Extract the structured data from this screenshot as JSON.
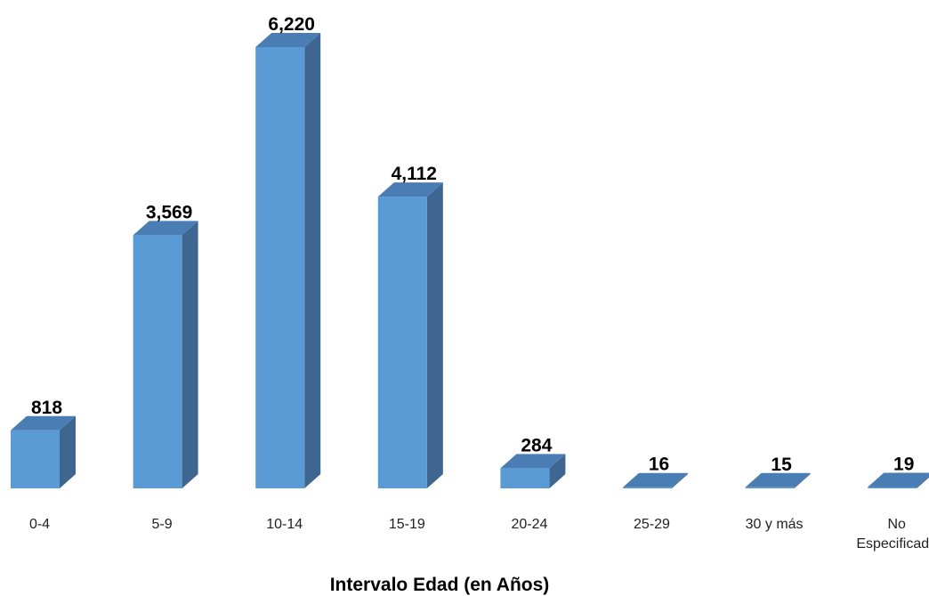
{
  "colors": {
    "front": "#5B9BD5",
    "top": "#4A7DB3",
    "side": "#3E6690"
  },
  "chart_data": {
    "type": "bar",
    "categories": [
      "0-4",
      "5-9",
      "10-14",
      "15-19",
      "20-24",
      "25-29",
      "30 y más",
      "No Especificado"
    ],
    "category_lines": [
      [
        "0-4"
      ],
      [
        "5-9"
      ],
      [
        "10-14"
      ],
      [
        "15-19"
      ],
      [
        "20-24"
      ],
      [
        "25-29"
      ],
      [
        "30 y más"
      ],
      [
        "No",
        "Especificado"
      ]
    ],
    "values": [
      818,
      3569,
      6220,
      4112,
      284,
      16,
      15,
      19
    ],
    "value_labels": [
      "818",
      "3,569",
      "6,220",
      "4,112",
      "284",
      "16",
      "15",
      "19"
    ],
    "xlabel": "Intervalo Edad (en Años)",
    "ylabel": "",
    "ylim": [
      0,
      6220
    ],
    "grid": false,
    "legend": "none",
    "three_d": true
  }
}
